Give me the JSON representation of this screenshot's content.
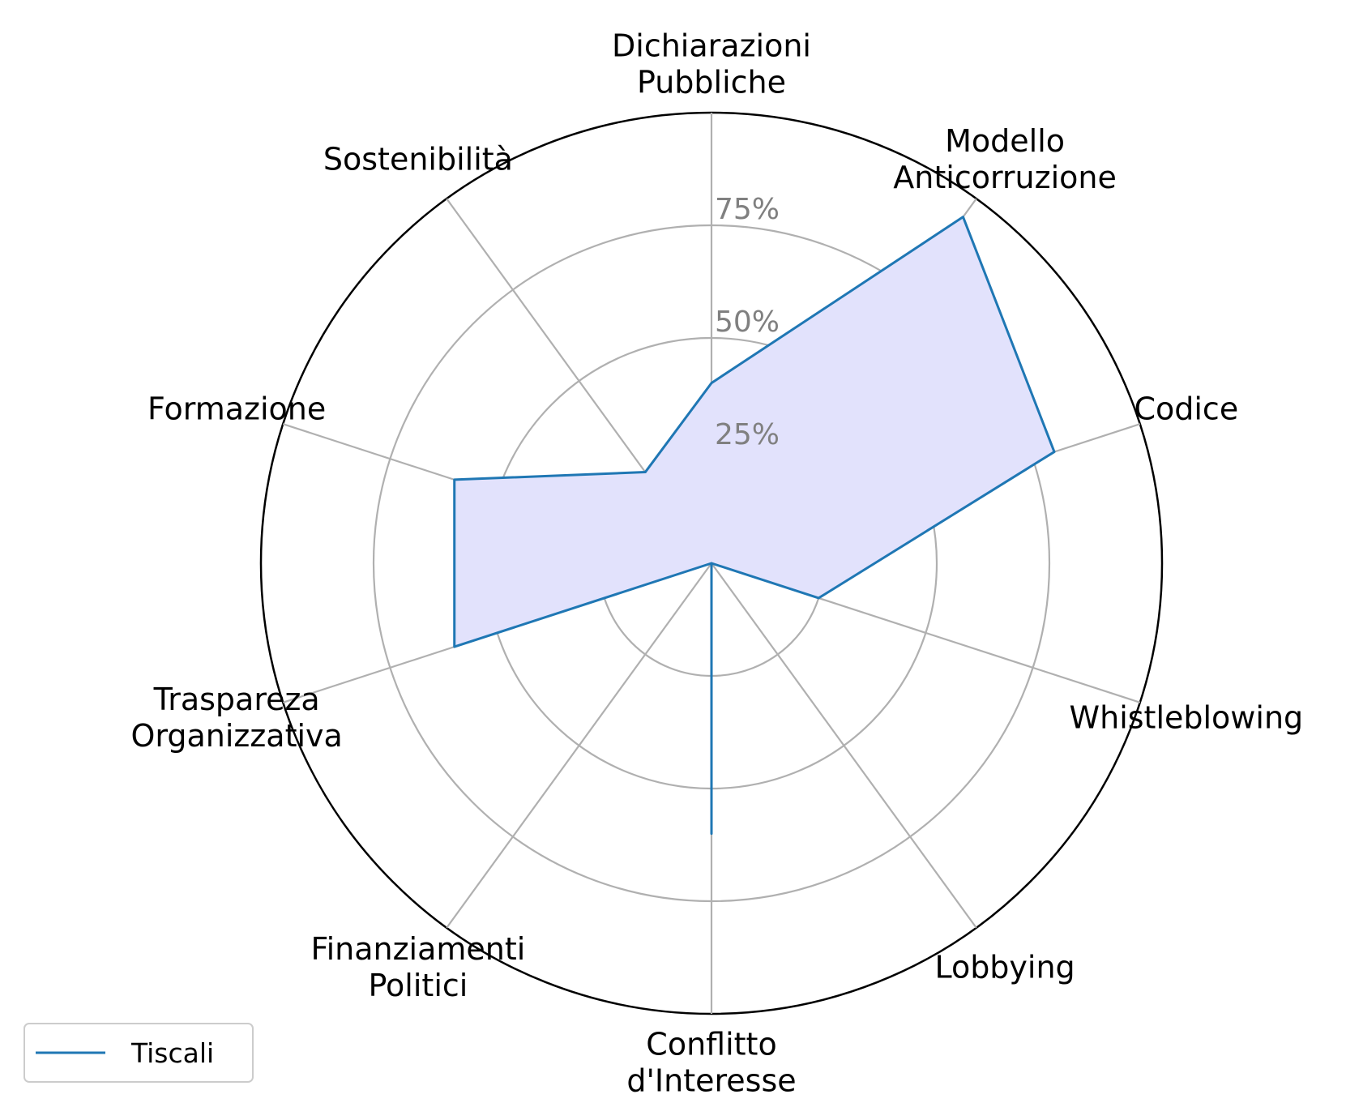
{
  "chart_data": {
    "type": "radar",
    "axes": [
      [
        "Dichiarazioni",
        "Pubbliche"
      ],
      [
        "Modello",
        "Anticorruzione"
      ],
      [
        "Codice"
      ],
      [
        "Whistleblowing"
      ],
      [
        "Lobbying"
      ],
      [
        "Conflitto",
        "d'Interesse"
      ],
      [
        "Finanziamenti",
        "Politici"
      ],
      [
        "Traspareza",
        "Organizzativa"
      ],
      [
        "Formazione"
      ],
      [
        "Sostenibilità"
      ]
    ],
    "series": [
      {
        "name": "Tiscali",
        "values": [
          40,
          95,
          80,
          25,
          0,
          60,
          0,
          60,
          60,
          25
        ]
      }
    ],
    "r_ticks": [
      25,
      50,
      75,
      100
    ],
    "r_tick_labels": [
      "25%",
      "50%",
      "75%",
      ""
    ],
    "r_max": 100,
    "legend": {
      "position": "bottom-left"
    },
    "colors": {
      "line": "#1f77b4",
      "fill": "#e2e2fc",
      "grid": "#b0b0b0",
      "frame": "#000000",
      "tick_text": "#808080"
    }
  }
}
